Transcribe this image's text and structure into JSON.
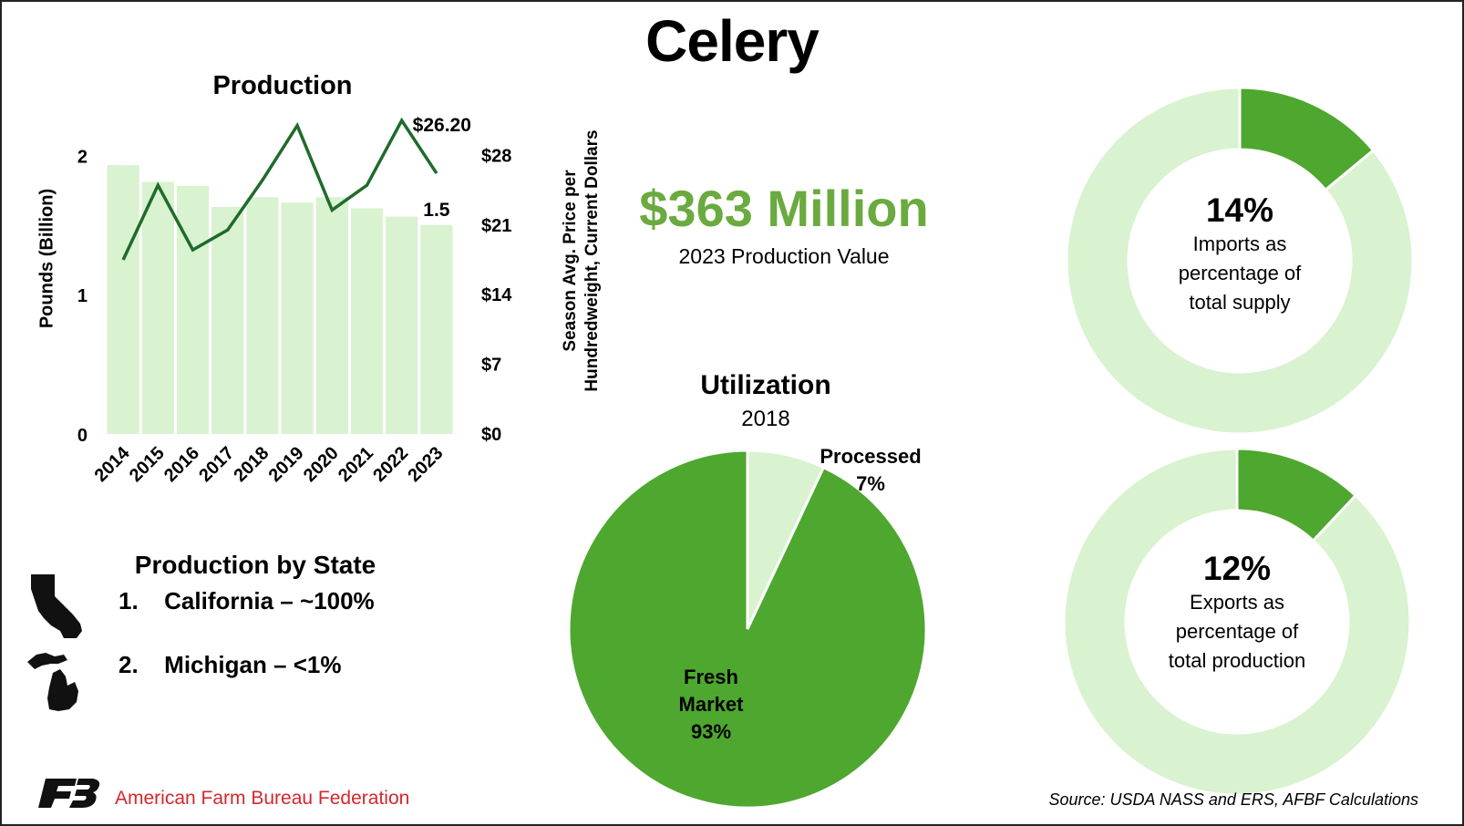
{
  "title": "Celery",
  "production_value": {
    "amount": "$363 Million",
    "label": "2023 Production Value"
  },
  "colors": {
    "accent_green": "#4EA72E",
    "light_green": "#D9F2D0",
    "line_green": "#1F6B2B",
    "value_green": "#6AAA3F",
    "brand_red": "#D4272F"
  },
  "chart_data": [
    {
      "type": "bar",
      "title": "Production",
      "ylabel": "Pounds (Billion)",
      "y2label": [
        "Season Avg. Price per",
        "Hundredweight, Current Dollars"
      ],
      "categories": [
        "2014",
        "2015",
        "2016",
        "2017",
        "2018",
        "2019",
        "2020",
        "2021",
        "2022",
        "2023"
      ],
      "series": [
        {
          "type": "bar",
          "axis": "left",
          "values": [
            1.93,
            1.81,
            1.78,
            1.63,
            1.7,
            1.66,
            1.7,
            1.62,
            1.56,
            1.5
          ]
        },
        {
          "type": "line",
          "axis": "right",
          "values": [
            17.5,
            25.0,
            18.5,
            20.5,
            25.5,
            31.0,
            22.5,
            25.0,
            31.5,
            26.2
          ]
        }
      ],
      "ylim": [
        0,
        2.5
      ],
      "yticks": [
        "0",
        "1",
        "2"
      ],
      "y2lim": [
        0,
        35
      ],
      "y2ticks": [
        "$0",
        "$7",
        "$14",
        "$21",
        "$28"
      ],
      "data_labels": {
        "bar_last": "1.5",
        "line_last": "$26.20"
      },
      "grid": false
    },
    {
      "type": "pie",
      "title": "Utilization",
      "subtitle": "2018",
      "slices": [
        {
          "label": "Processed",
          "value": 7,
          "pct_label": "7%",
          "color": "#D9F2D0"
        },
        {
          "label": "Fresh Market",
          "value": 93,
          "pct_label": "93%",
          "color": "#4EA72E"
        }
      ]
    },
    {
      "type": "pie",
      "variant": "donut",
      "value": 14,
      "center_value": "14%",
      "center_label": [
        "Imports as",
        "percentage of",
        "total supply"
      ]
    },
    {
      "type": "pie",
      "variant": "donut",
      "value": 12,
      "center_value": "12%",
      "center_label": [
        "Exports as",
        "percentage of",
        "total production"
      ]
    }
  ],
  "states": {
    "title": "Production by State",
    "items": [
      {
        "rank": "1.",
        "text": "California – ~100%"
      },
      {
        "rank": "2.",
        "text": "Michigan – <1%"
      }
    ]
  },
  "footer": {
    "org": "American Farm Bureau Federation",
    "source": "Source: USDA NASS and ERS, AFBF Calculations"
  }
}
